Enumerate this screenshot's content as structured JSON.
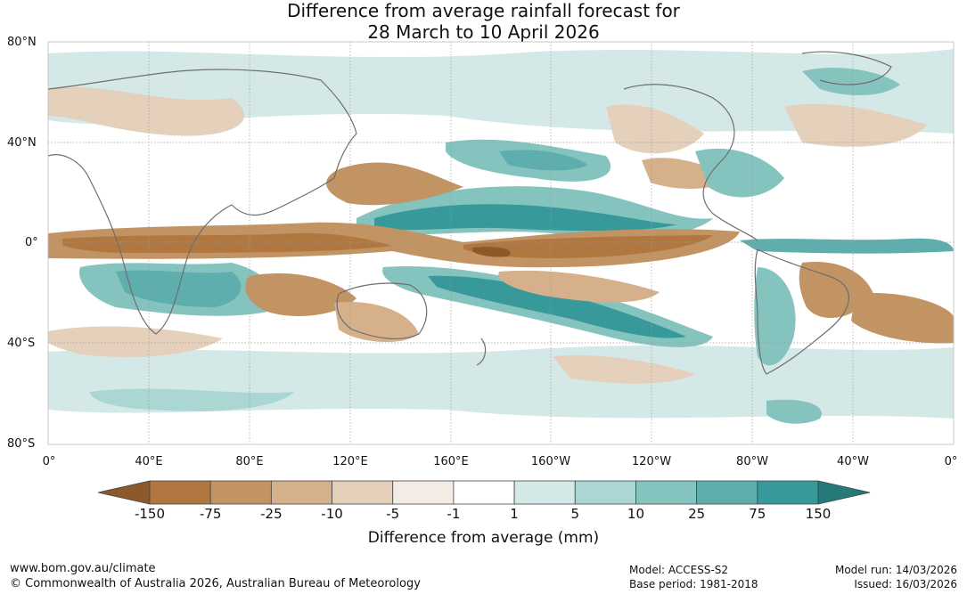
{
  "title": {
    "line1": "Difference from average rainfall forecast for",
    "line2": "28 March to 10 April 2026"
  },
  "axes": {
    "lat_labels": [
      "80°N",
      "40°N",
      "0°",
      "40°S",
      "80°S"
    ],
    "lon_labels": [
      "0°",
      "40°E",
      "80°E",
      "120°E",
      "160°E",
      "160°W",
      "120°W",
      "80°W",
      "40°W",
      "0°"
    ]
  },
  "colorbar": {
    "title": "Difference from average (mm)",
    "ticks": [
      "-150",
      "-75",
      "-25",
      "-10",
      "-5",
      "-1",
      "1",
      "5",
      "10",
      "25",
      "75",
      "150"
    ],
    "colors": [
      "#8c5a2a",
      "#b07840",
      "#c39463",
      "#d5b08a",
      "#e5d0bc",
      "#f3ece5",
      "#ffffff",
      "#d4e9e7",
      "#aad6d3",
      "#85c3bf",
      "#5eaead",
      "#37999a",
      "#237a79"
    ]
  },
  "footer": {
    "url": "www.bom.gov.au/climate",
    "copyright": "© Commonwealth of Australia 2026, Australian Bureau of Meteorology",
    "model": "Model: ACCESS-S2",
    "base_period": "Base period: 1981-2018",
    "model_run": "Model run: 14/03/2026",
    "issued": "Issued: 16/03/2026"
  }
}
